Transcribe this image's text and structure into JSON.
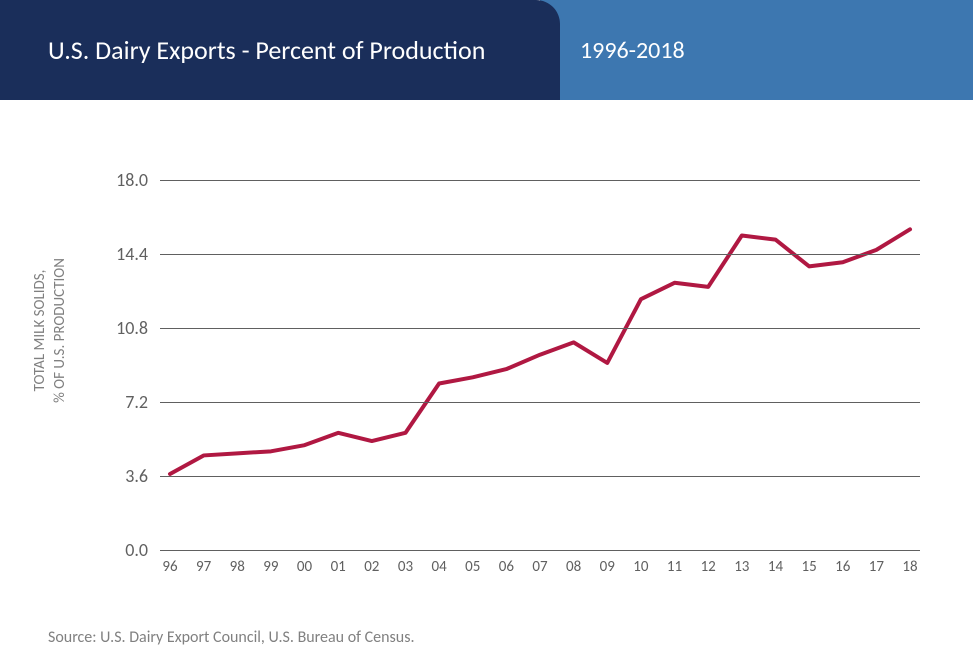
{
  "header": {
    "title": "U.S. Dairy Exports - Percent of Production",
    "date_range": "1996-2018",
    "title_bg": "#1a2e5a",
    "date_bg": "#3d77b0",
    "text_color": "#ffffff",
    "title_fontsize": 26,
    "date_fontsize": 24
  },
  "chart": {
    "type": "line",
    "ylabel": "TOTAL MILK SOLIDS,\n% OF U.S. PRODUCTION",
    "ylabel_color": "#808080",
    "ylabel_fontsize": 15,
    "ylim": [
      0.0,
      18.0
    ],
    "yticks": [
      0.0,
      3.6,
      7.2,
      10.8,
      14.4,
      18.0
    ],
    "ytick_labels": [
      "0.0",
      "3.6",
      "7.2",
      "10.8",
      "14.4",
      "18.0"
    ],
    "x_labels": [
      "96",
      "97",
      "98",
      "99",
      "00",
      "01",
      "02",
      "03",
      "04",
      "05",
      "06",
      "07",
      "08",
      "09",
      "10",
      "11",
      "12",
      "13",
      "14",
      "15",
      "16",
      "17",
      "18"
    ],
    "values": [
      3.7,
      4.6,
      4.7,
      4.8,
      5.1,
      5.7,
      5.3,
      5.7,
      8.1,
      8.4,
      8.8,
      9.5,
      10.1,
      9.1,
      12.2,
      13.0,
      12.8,
      15.3,
      15.1,
      13.8,
      14.0,
      14.6,
      15.6
    ],
    "line_color": "#b01842",
    "line_width": 4,
    "grid_color": "#606060",
    "tick_color": "#606060",
    "tick_fontsize_y": 18,
    "tick_fontsize_x": 15,
    "background_color": "#ffffff"
  },
  "source": {
    "text": "Source: U.S. Dairy Export Council, U.S. Bureau of Census.",
    "color": "#808080",
    "fontsize": 16
  }
}
